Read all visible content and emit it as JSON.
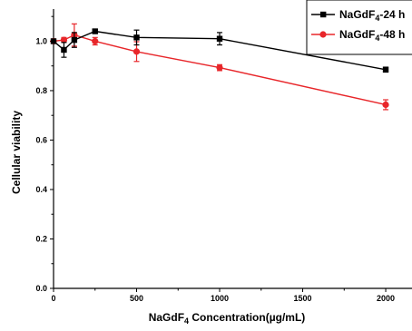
{
  "chart_data": {
    "type": "line",
    "xlabel": "NaGdF4 Concentration(µg/mL)",
    "ylabel": "Cellular viability",
    "xlim": [
      0,
      2150
    ],
    "ylim": [
      0,
      1.13
    ],
    "x_ticks": [
      0,
      500,
      1000,
      1500,
      2000
    ],
    "y_ticks": [
      0.0,
      0.2,
      0.4,
      0.6,
      0.8,
      1.0
    ],
    "legend_position": "top-right",
    "series": [
      {
        "name": "NaGdF4-24 h",
        "color": "#000000",
        "marker": "square",
        "x": [
          0,
          62.5,
          125,
          250,
          500,
          1000,
          2000
        ],
        "y": [
          1.0,
          0.965,
          1.005,
          1.04,
          1.015,
          1.01,
          0.885
        ],
        "error": [
          0.005,
          0.03,
          0.03,
          0.008,
          0.03,
          0.025,
          0.01
        ]
      },
      {
        "name": "NaGdF4-48 h",
        "color": "#e8262a",
        "marker": "circle",
        "x": [
          0,
          62.5,
          125,
          250,
          500,
          1000,
          2000
        ],
        "y": [
          1.0,
          1.005,
          1.025,
          1.0,
          0.958,
          0.893,
          0.743
        ],
        "error": [
          0.005,
          0.01,
          0.045,
          0.015,
          0.04,
          0.012,
          0.02
        ]
      }
    ]
  }
}
